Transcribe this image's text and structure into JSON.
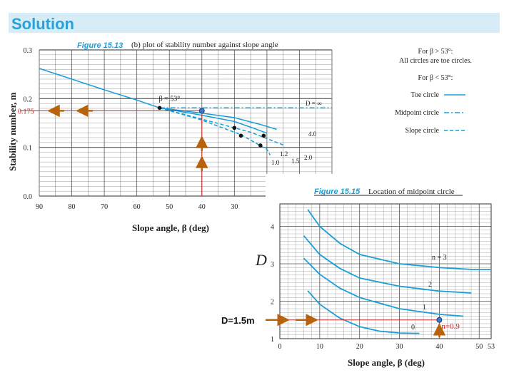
{
  "header": {
    "title": "Solution"
  },
  "chart_data": [
    {
      "type": "line",
      "figure_label": "Figure 15.13",
      "title": "(b) plot of stability number against slope angle",
      "xlabel": "Slope angle, β (deg)",
      "ylabel": "Stability number, m",
      "xlim": [
        90,
        0
      ],
      "ylim": [
        0,
        0.3
      ],
      "x_ticks": [
        "90",
        "80",
        "70",
        "60",
        "50",
        "40",
        "30"
      ],
      "y_ticks": [
        "0.0",
        "0.1",
        "0.2",
        "0.3"
      ],
      "x_tick_values": [
        90,
        80,
        70,
        60,
        50,
        40,
        30
      ],
      "y_tick_values": [
        0.0,
        0.1,
        0.2,
        0.3
      ],
      "grid": true,
      "series": [
        {
          "name": "Toe circle",
          "style": "solid",
          "x": [
            90,
            80,
            70,
            60,
            53
          ],
          "y": [
            0.262,
            0.24,
            0.218,
            0.197,
            0.181
          ]
        },
        {
          "name": "Toe circle",
          "style": "solid",
          "x": [
            53,
            40,
            30,
            22,
            17
          ],
          "y": [
            0.181,
            0.17,
            0.161,
            0.147,
            0.137
          ]
        },
        {
          "name": "Toe circle",
          "style": "solid",
          "x": [
            53,
            40,
            30,
            24,
            20
          ],
          "y": [
            0.181,
            0.166,
            0.153,
            0.139,
            0.129
          ]
        },
        {
          "name": "Midpoint circle",
          "style": "dashdot",
          "x": [
            53,
            40,
            20,
            5,
            0
          ],
          "y": [
            0.181,
            0.181,
            0.181,
            0.181,
            0.181
          ]
        },
        {
          "name": "Slope circle",
          "style": "dashed",
          "x": [
            53,
            40,
            25,
            15
          ],
          "y": [
            0.181,
            0.158,
            0.131,
            0.105
          ]
        },
        {
          "name": "Slope circle",
          "style": "dashed",
          "x": [
            53,
            40,
            28,
            20,
            19
          ],
          "y": [
            0.181,
            0.156,
            0.126,
            0.096,
            0.084
          ]
        }
      ],
      "curve_labels": [
        "D = ∞",
        "4.0",
        "2.0",
        "1.5",
        "1.2",
        "1.0"
      ],
      "annotations": {
        "beta_label": "β = 53°",
        "read_value": "0.175",
        "read_value_y": 0.175,
        "read_x": 40
      },
      "legend": {
        "position": "right",
        "notes": [
          "For β > 53°:",
          "All circles are toe circles.",
          "For β < 53°:"
        ],
        "entries": [
          {
            "label": "Toe circle",
            "style": "solid"
          },
          {
            "label": "Midpoint circle",
            "style": "dashdot"
          },
          {
            "label": "Slope circle",
            "style": "dashed"
          }
        ]
      },
      "colors": {
        "curve": "#1a9ed8",
        "grid": "#555555",
        "guide": "#cc2222",
        "arrow": "#b8620e"
      }
    },
    {
      "type": "line",
      "figure_label": "Figure 15.15",
      "title": "Location of midpoint circle",
      "xlabel": "Slope angle, β (deg)",
      "ylabel": "D",
      "xlim": [
        0,
        53
      ],
      "ylim": [
        1,
        4.6
      ],
      "x_ticks": [
        "0",
        "10",
        "20",
        "30",
        "40",
        "50",
        "53"
      ],
      "x_tick_values": [
        0,
        10,
        20,
        30,
        40,
        50,
        53
      ],
      "y_ticks": [
        "1",
        "2",
        "3",
        "4"
      ],
      "y_tick_values": [
        1,
        2,
        3,
        4
      ],
      "grid": true,
      "series": [
        {
          "name": "n = 3",
          "x": [
            7,
            10,
            15,
            20,
            30,
            40,
            48,
            53
          ],
          "y": [
            4.45,
            4.0,
            3.55,
            3.25,
            3.0,
            2.9,
            2.85,
            2.85
          ]
        },
        {
          "name": "2",
          "x": [
            6,
            10,
            15,
            20,
            30,
            40,
            48
          ],
          "y": [
            3.75,
            3.25,
            2.88,
            2.62,
            2.4,
            2.27,
            2.22
          ]
        },
        {
          "name": "1",
          "x": [
            6,
            10,
            15,
            20,
            30,
            40,
            46
          ],
          "y": [
            3.15,
            2.72,
            2.35,
            2.1,
            1.8,
            1.65,
            1.6
          ]
        },
        {
          "name": "0",
          "x": [
            7,
            10,
            15,
            20,
            25,
            30,
            35
          ],
          "y": [
            2.28,
            1.92,
            1.55,
            1.32,
            1.2,
            1.15,
            1.14
          ]
        }
      ],
      "curve_labels": [
        "n = 3",
        "2",
        "1",
        "0"
      ],
      "annotations": {
        "d_label": "D=1.5m",
        "n_label": "n=0.9",
        "point": {
          "x": 40,
          "y": 1.5
        }
      },
      "colors": {
        "curve": "#1a9ed8",
        "grid": "#555555",
        "guide": "#cc2222",
        "arrow": "#b8620e",
        "point": "#3a78c8"
      }
    }
  ]
}
